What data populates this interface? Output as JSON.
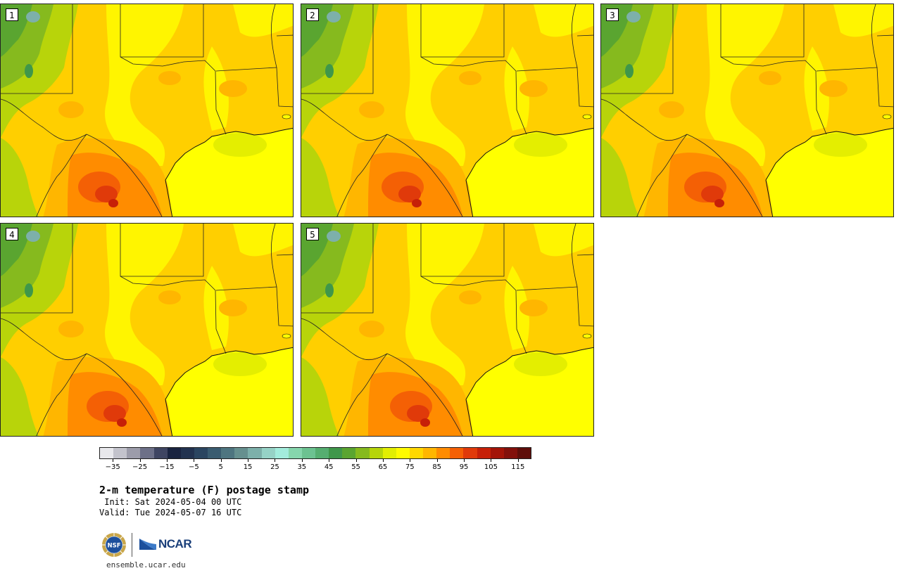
{
  "figure": {
    "title": "2-m temperature (F) postage stamp",
    "init_line": " Init: Sat 2024-05-04 00 UTC",
    "valid_line": "Valid: Tue 2024-05-07 16 UTC",
    "footer_url": "ensemble.ucar.edu"
  },
  "panels": [
    {
      "label": "1",
      "variant": 0
    },
    {
      "label": "2",
      "variant": 1
    },
    {
      "label": "3",
      "variant": 2
    },
    {
      "label": "4",
      "variant": 3
    },
    {
      "label": "5",
      "variant": 4
    }
  ],
  "colorbar": {
    "tick_labels": [
      "−35",
      "−25",
      "−15",
      "−5",
      "5",
      "15",
      "25",
      "35",
      "45",
      "55",
      "65",
      "75",
      "85",
      "95",
      "105",
      "115"
    ],
    "range": [
      -40,
      120
    ],
    "step": 5,
    "colors": [
      "#e8e8ec",
      "#c3c3cc",
      "#9c9caa",
      "#6d7088",
      "#3f4562",
      "#1a2440",
      "#22324f",
      "#2b4560",
      "#3a5c70",
      "#4e7580",
      "#66908f",
      "#7db0aa",
      "#96d2c6",
      "#a3ecdc",
      "#86d6ad",
      "#6cc291",
      "#55ae70",
      "#3f974a",
      "#5aa530",
      "#86ba1e",
      "#b6d50a",
      "#e2ee02",
      "#fffb00",
      "#ffd800",
      "#ffb600",
      "#ff8c00",
      "#f46005",
      "#e03a0a",
      "#c62008",
      "#a31408",
      "#82100b",
      "#5e0e0a"
    ]
  },
  "logos": {
    "nsf": "NSF",
    "ncar": "NCAR"
  }
}
